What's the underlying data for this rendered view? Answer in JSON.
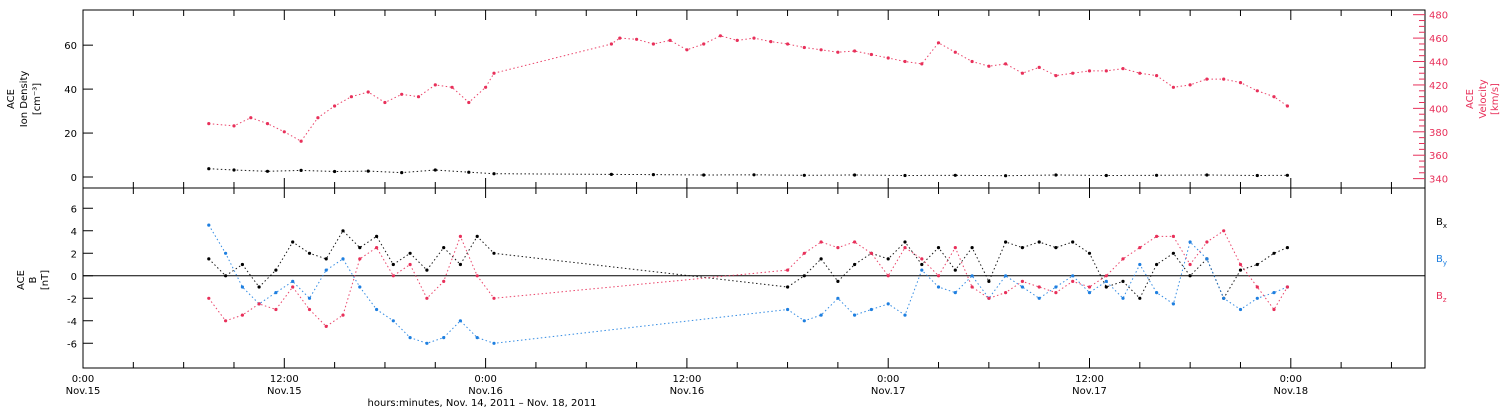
{
  "chart_data": [
    {
      "type": "scatter",
      "panel": "top",
      "ylabel_left": [
        "ACE",
        "Ion Density",
        "[cm⁻³]"
      ],
      "ylabel_right": [
        "ACE",
        "Velocity",
        "[km/s]"
      ],
      "left_ylim": [
        -5,
        76
      ],
      "left_ticks": [
        "0",
        "20",
        "40",
        "60"
      ],
      "right_ylim": [
        332,
        484
      ],
      "right_ticks": [
        "340",
        "360",
        "380",
        "400",
        "420",
        "440",
        "460",
        "480"
      ],
      "series": [
        {
          "name": "Velocity",
          "axis": "right",
          "color": "#e8305a",
          "x": [
            7.5,
            9,
            10,
            11,
            12,
            13,
            14,
            15,
            16,
            17,
            18,
            19,
            20,
            21,
            22,
            23,
            24,
            24.5,
            31.5,
            32,
            33,
            34,
            35,
            36,
            37,
            38,
            39,
            40,
            41,
            42,
            43,
            44,
            45,
            46,
            47,
            48,
            49,
            50,
            51,
            52,
            53,
            54,
            55,
            56,
            57,
            58,
            59,
            60,
            61,
            62,
            63,
            64,
            65,
            66,
            67,
            68,
            69,
            70,
            71,
            71.8
          ],
          "y": [
            387,
            385,
            392,
            387,
            380,
            372,
            392,
            402,
            410,
            414,
            405,
            412,
            410,
            420,
            418,
            405,
            418,
            430,
            455,
            460,
            459,
            455,
            458,
            450,
            455,
            462,
            458,
            460,
            457,
            455,
            452,
            450,
            448,
            449,
            446,
            443,
            440,
            438,
            456,
            448,
            440,
            436,
            438,
            430,
            435,
            428,
            430,
            432,
            432,
            434,
            430,
            428,
            418,
            420,
            425,
            425,
            422,
            415,
            410,
            402
          ]
        },
        {
          "name": "Ion Density",
          "axis": "left",
          "color": "#000000",
          "x": [
            7.5,
            9,
            11,
            13,
            15,
            17,
            19,
            21,
            23,
            24.5,
            31.5,
            34,
            37,
            40,
            43,
            46,
            49,
            52,
            55,
            58,
            61,
            64,
            67,
            70,
            71.8
          ],
          "y": [
            3.8,
            3.2,
            2.6,
            3.0,
            2.5,
            2.7,
            2.0,
            3.2,
            2.2,
            1.5,
            1.2,
            1.1,
            0.9,
            1.0,
            0.8,
            0.9,
            0.7,
            0.8,
            0.6,
            0.9,
            0.7,
            0.8,
            0.9,
            0.7,
            0.8
          ]
        }
      ]
    },
    {
      "type": "scatter",
      "panel": "bottom",
      "ylabel": [
        "ACE",
        "B",
        "[nT]"
      ],
      "ylim": [
        -8.2,
        7.8
      ],
      "yticks": [
        "-6",
        "-4",
        "-2",
        "0",
        "2",
        "4",
        "6"
      ],
      "legend_placement": "right",
      "series": [
        {
          "name": "B",
          "sub": "x",
          "color": "#000000",
          "x": [
            7.5,
            8.5,
            9.5,
            10.5,
            11.5,
            12.5,
            13.5,
            14.5,
            15.5,
            16.5,
            17.5,
            18.5,
            19.5,
            20.5,
            21.5,
            22.5,
            23.5,
            24.5,
            42,
            43,
            44,
            45,
            46,
            47,
            48,
            49,
            50,
            51,
            52,
            53,
            54,
            55,
            56,
            57,
            58,
            59,
            60,
            61,
            62,
            63,
            64,
            65,
            66,
            67,
            68,
            69,
            70,
            71,
            71.8
          ],
          "y": [
            1.5,
            0.0,
            1.0,
            -1.0,
            0.5,
            3.0,
            2.0,
            1.5,
            4.0,
            2.5,
            3.5,
            1.0,
            2.0,
            0.5,
            2.5,
            1.0,
            3.5,
            2.0,
            -1.0,
            0.0,
            1.5,
            -0.5,
            1.0,
            2.0,
            1.5,
            3.0,
            1.0,
            2.5,
            0.5,
            2.5,
            -0.5,
            3.0,
            2.5,
            3.0,
            2.5,
            3.0,
            2.0,
            -1.0,
            -0.5,
            -2.0,
            1.0,
            2.0,
            0.0,
            1.5,
            -2.0,
            0.5,
            1.0,
            2.0,
            2.5
          ]
        },
        {
          "name": "B",
          "sub": "y",
          "color": "#1e7fe0",
          "x": [
            7.5,
            8.5,
            9.5,
            10.5,
            11.5,
            12.5,
            13.5,
            14.5,
            15.5,
            16.5,
            17.5,
            18.5,
            19.5,
            20.5,
            21.5,
            22.5,
            23.5,
            24.5,
            42,
            43,
            44,
            45,
            46,
            47,
            48,
            49,
            50,
            51,
            52,
            53,
            54,
            55,
            56,
            57,
            58,
            59,
            60,
            61,
            62,
            63,
            64,
            65,
            66,
            67,
            68,
            69,
            70,
            71,
            71.8
          ],
          "y": [
            4.5,
            2.0,
            -1.0,
            -2.5,
            -1.5,
            -0.5,
            -2.0,
            0.5,
            1.5,
            -1.0,
            -3.0,
            -4.0,
            -5.5,
            -6.0,
            -5.5,
            -4.0,
            -5.5,
            -6.0,
            -3.0,
            -4.0,
            -3.5,
            -2.0,
            -3.5,
            -3.0,
            -2.5,
            -3.5,
            0.5,
            -1.0,
            -1.5,
            0.0,
            -2.0,
            0.0,
            -1.0,
            -2.0,
            -1.0,
            0.0,
            -1.5,
            -0.5,
            -2.0,
            1.0,
            -1.5,
            -2.5,
            3.0,
            1.5,
            -2.0,
            -3.0,
            -2.0,
            -1.5,
            -1.0
          ]
        },
        {
          "name": "B",
          "sub": "z",
          "color": "#e8305a",
          "x": [
            7.5,
            8.5,
            9.5,
            10.5,
            11.5,
            12.5,
            13.5,
            14.5,
            15.5,
            16.5,
            17.5,
            18.5,
            19.5,
            20.5,
            21.5,
            22.5,
            23.5,
            24.5,
            42,
            43,
            44,
            45,
            46,
            47,
            48,
            49,
            50,
            51,
            52,
            53,
            54,
            55,
            56,
            57,
            58,
            59,
            60,
            61,
            62,
            63,
            64,
            65,
            66,
            67,
            68,
            69,
            70,
            71,
            71.8
          ],
          "y": [
            -2.0,
            -4.0,
            -3.5,
            -2.5,
            -3.0,
            -1.0,
            -3.0,
            -4.5,
            -3.5,
            1.5,
            2.5,
            0.0,
            1.0,
            -2.0,
            -0.5,
            3.5,
            0.0,
            -2.0,
            0.5,
            2.0,
            3.0,
            2.5,
            3.0,
            2.0,
            0.0,
            2.5,
            1.5,
            0.0,
            2.5,
            -1.0,
            -2.0,
            -1.5,
            -0.5,
            -1.0,
            -1.5,
            -0.5,
            -1.0,
            0.0,
            1.5,
            2.5,
            3.5,
            3.5,
            1.0,
            3.0,
            4.0,
            1.0,
            -1.0,
            -3.0,
            -1.0
          ]
        }
      ]
    },
    {
      "type": "axis",
      "xlabel": "hours:minutes, Nov. 14, 2011 – Nov. 18, 2011",
      "xlim": [
        0,
        80
      ],
      "major_ticks": [
        {
          "x": 0,
          "time": "0:00",
          "date": "Nov.15"
        },
        {
          "x": 12,
          "time": "12:00",
          "date": "Nov.15"
        },
        {
          "x": 24,
          "time": "0:00",
          "date": "Nov.16"
        },
        {
          "x": 36,
          "time": "12:00",
          "date": "Nov.16"
        },
        {
          "x": 48,
          "time": "0:00",
          "date": "Nov.17"
        },
        {
          "x": 60,
          "time": "12:00",
          "date": "Nov.17"
        },
        {
          "x": 72,
          "time": "0:00",
          "date": "Nov.18"
        }
      ]
    }
  ]
}
